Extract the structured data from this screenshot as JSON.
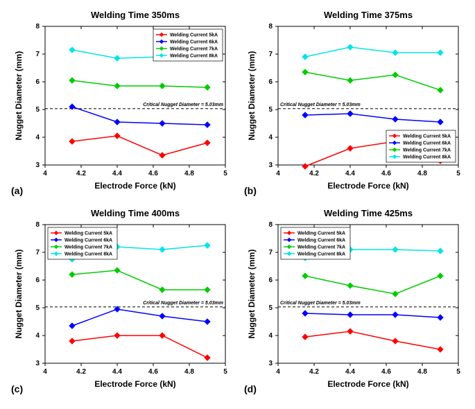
{
  "global": {
    "xlabel": "Electrode Force (kN)",
    "ylabel": "Nugget Diameter (mm)",
    "xlim": [
      4,
      5
    ],
    "ylim": [
      3,
      8
    ],
    "xticks": [
      4,
      4.2,
      4.4,
      4.6,
      4.8,
      5
    ],
    "yticks": [
      3,
      4,
      5,
      6,
      7,
      8
    ],
    "critical_line": 5.03,
    "critical_label": "Critical Nugget Diameter = 5.03mm",
    "xvalues": [
      4.15,
      4.4,
      4.65,
      4.9
    ],
    "legend_labels": [
      "Welding Current 5kA",
      "Welding Current 6kA",
      "Welding Current 7kA",
      "Welding Current 8kA"
    ],
    "series_colors": [
      "#ff0000",
      "#0000ff",
      "#00cc00",
      "#00e5e5"
    ],
    "marker": "diamond",
    "line_width": 1.5,
    "marker_size": 4,
    "background_color": "#ffffff",
    "axis_color": "#000000"
  },
  "panels": [
    {
      "id": "a",
      "letter": "(a)",
      "title": "Welding Time 350ms",
      "legend_pos": "top-right",
      "crit_label_pos": "right",
      "series": [
        [
          3.85,
          4.05,
          3.35,
          3.8
        ],
        [
          5.1,
          4.55,
          4.5,
          4.45
        ],
        [
          6.05,
          5.85,
          5.85,
          5.8
        ],
        [
          7.15,
          6.85,
          6.9,
          7.1
        ]
      ]
    },
    {
      "id": "b",
      "letter": "(b)",
      "title": "Welding Time 375ms",
      "legend_pos": "bottom-right",
      "crit_label_pos": "left",
      "series": [
        [
          2.95,
          3.6,
          3.85,
          3.15
        ],
        [
          4.8,
          4.85,
          4.65,
          4.55
        ],
        [
          6.35,
          6.05,
          6.25,
          5.7
        ],
        [
          6.9,
          7.25,
          7.05,
          7.05
        ]
      ]
    },
    {
      "id": "c",
      "letter": "(c)",
      "title": "Welding Time 400ms",
      "legend_pos": "top-left",
      "crit_label_pos": "right",
      "series": [
        [
          3.8,
          4.0,
          4.0,
          3.2
        ],
        [
          4.35,
          4.95,
          4.7,
          4.5
        ],
        [
          6.2,
          6.35,
          5.65,
          5.65
        ],
        [
          6.75,
          7.2,
          7.1,
          7.25
        ]
      ]
    },
    {
      "id": "d",
      "letter": "(d)",
      "title": "Welding Time 425ms",
      "legend_pos": "top-left",
      "crit_label_pos": "left",
      "series": [
        [
          3.95,
          4.15,
          3.8,
          3.5
        ],
        [
          4.8,
          4.75,
          4.75,
          4.65
        ],
        [
          6.15,
          5.8,
          5.5,
          6.15
        ],
        [
          6.8,
          7.1,
          7.1,
          7.05
        ]
      ]
    }
  ]
}
